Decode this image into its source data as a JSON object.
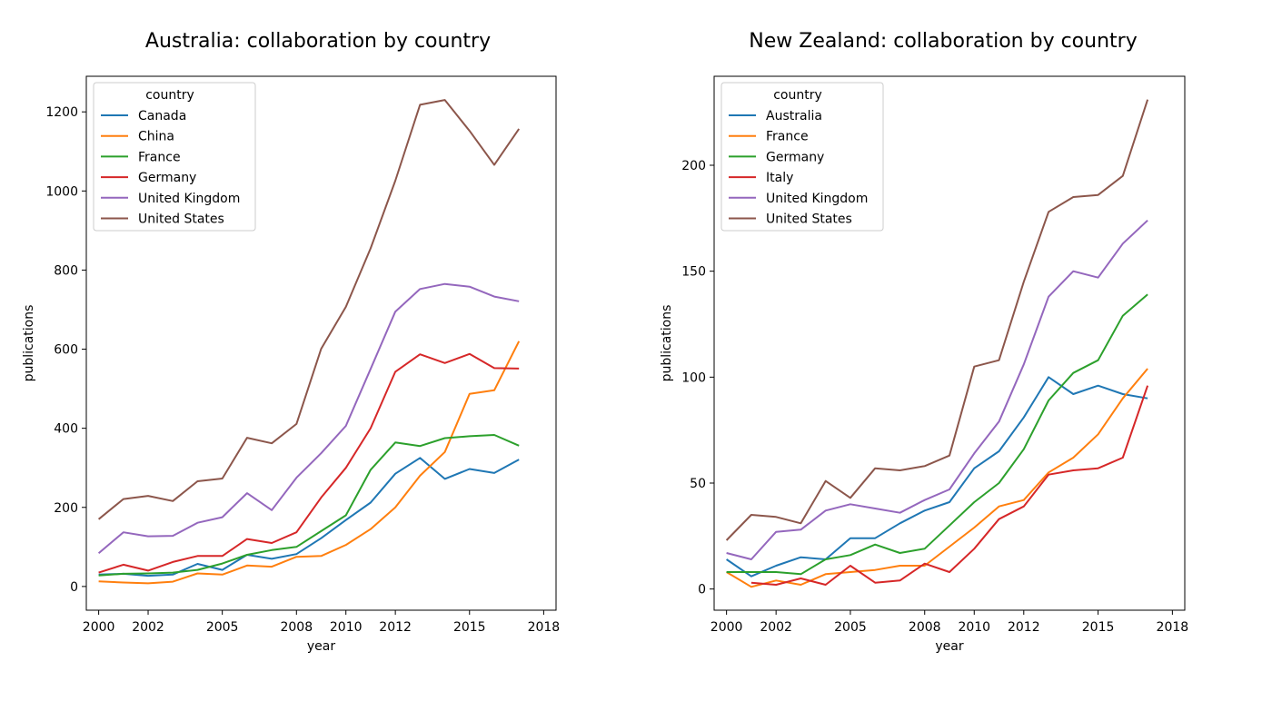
{
  "chart_data": [
    {
      "type": "line",
      "title": "Australia: collaboration by country",
      "xlabel": "year",
      "ylabel": "publications",
      "xlim": [
        1999.5,
        2018.5
      ],
      "ylim": [
        -60,
        1290
      ],
      "xticks": [
        2000,
        2002,
        2005,
        2008,
        2010,
        2012,
        2015,
        2018
      ],
      "yticks": [
        0,
        200,
        400,
        600,
        800,
        1000,
        1200
      ],
      "grid": false,
      "legend": {
        "title": "country",
        "position": "top-left"
      },
      "x": [
        2000,
        2001,
        2002,
        2003,
        2004,
        2005,
        2006,
        2007,
        2008,
        2009,
        2010,
        2011,
        2012,
        2013,
        2014,
        2015,
        2016,
        2017
      ],
      "series": [
        {
          "name": "Canada",
          "color": "#1f77b4",
          "values": [
            30,
            32,
            27,
            30,
            57,
            42,
            80,
            70,
            82,
            122,
            168,
            212,
            285,
            325,
            272,
            297,
            287,
            321
          ]
        },
        {
          "name": "China",
          "color": "#ff7f0e",
          "values": [
            13,
            10,
            8,
            12,
            33,
            30,
            53,
            50,
            75,
            77,
            105,
            145,
            200,
            280,
            340,
            487,
            496,
            620
          ]
        },
        {
          "name": "France",
          "color": "#2ca02c",
          "values": [
            28,
            32,
            33,
            35,
            42,
            58,
            80,
            92,
            100,
            140,
            180,
            295,
            364,
            355,
            375,
            380,
            383,
            356
          ]
        },
        {
          "name": "Germany",
          "color": "#d62728",
          "values": [
            35,
            55,
            40,
            62,
            77,
            77,
            120,
            110,
            137,
            225,
            300,
            400,
            543,
            587,
            565,
            588,
            552,
            551
          ]
        },
        {
          "name": "United Kingdom",
          "color": "#9467bd",
          "values": [
            84,
            137,
            127,
            128,
            161,
            175,
            236,
            193,
            275,
            337,
            406,
            550,
            695,
            752,
            765,
            758,
            733,
            721
          ]
        },
        {
          "name": "United States",
          "color": "#8c564b",
          "values": [
            170,
            221,
            229,
            216,
            266,
            273,
            376,
            362,
            411,
            601,
            707,
            855,
            1026,
            1218,
            1230,
            1152,
            1066,
            1157
          ]
        }
      ]
    },
    {
      "type": "line",
      "title": "New Zealand: collaboration by country",
      "xlabel": "year",
      "ylabel": "publications",
      "xlim": [
        1999.5,
        2018.5
      ],
      "ylim": [
        -10,
        242
      ],
      "xticks": [
        2000,
        2002,
        2005,
        2008,
        2010,
        2012,
        2015,
        2018
      ],
      "yticks": [
        0,
        50,
        100,
        150,
        200
      ],
      "grid": false,
      "legend": {
        "title": "country",
        "position": "top-left"
      },
      "x": [
        2000,
        2001,
        2002,
        2003,
        2004,
        2005,
        2006,
        2007,
        2008,
        2009,
        2010,
        2011,
        2012,
        2013,
        2014,
        2015,
        2016,
        2017
      ],
      "series": [
        {
          "name": "Australia",
          "color": "#1f77b4",
          "values": [
            14,
            6,
            11,
            15,
            14,
            24,
            24,
            31,
            37,
            41,
            57,
            65,
            81,
            100,
            92,
            96,
            92,
            90
          ]
        },
        {
          "name": "France",
          "color": "#ff7f0e",
          "values": [
            8,
            1,
            4,
            2,
            7,
            8,
            9,
            11,
            11,
            20,
            29,
            39,
            42,
            55,
            62,
            73,
            90,
            104
          ]
        },
        {
          "name": "Germany",
          "color": "#2ca02c",
          "values": [
            8,
            8,
            8,
            7,
            14,
            16,
            21,
            17,
            19,
            30,
            41,
            50,
            66,
            89,
            102,
            108,
            129,
            139
          ]
        },
        {
          "name": "Italy",
          "color": "#d62728",
          "values": [
            null,
            3,
            2,
            5,
            2,
            11,
            3,
            4,
            12,
            8,
            19,
            33,
            39,
            54,
            56,
            57,
            62,
            96
          ]
        },
        {
          "name": "United Kingdom",
          "color": "#9467bd",
          "values": [
            17,
            14,
            27,
            28,
            37,
            40,
            38,
            36,
            42,
            47,
            64,
            79,
            106,
            138,
            150,
            147,
            163,
            174
          ]
        },
        {
          "name": "United States",
          "color": "#8c564b",
          "values": [
            23,
            35,
            34,
            31,
            51,
            43,
            57,
            56,
            58,
            63,
            105,
            108,
            145,
            178,
            185,
            186,
            195,
            231
          ]
        }
      ]
    }
  ]
}
